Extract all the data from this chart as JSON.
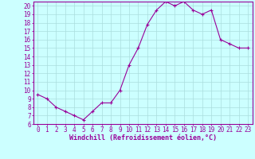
{
  "hours": [
    0,
    1,
    2,
    3,
    4,
    5,
    6,
    7,
    8,
    9,
    10,
    11,
    12,
    13,
    14,
    15,
    16,
    17,
    18,
    19,
    20,
    21,
    22,
    23
  ],
  "values": [
    9.5,
    9.0,
    8.0,
    7.5,
    7.0,
    6.5,
    7.5,
    8.5,
    8.5,
    10.0,
    13.0,
    15.0,
    17.8,
    19.5,
    20.5,
    20.0,
    20.5,
    19.5,
    19.0,
    19.5,
    16.0,
    15.5,
    15.0,
    15.0
  ],
  "line_color": "#990099",
  "marker": "+",
  "bg_color": "#ccffff",
  "grid_color": "#aadddd",
  "xlabel": "Windchill (Refroidissement éolien,°C)",
  "ylim": [
    6,
    20.5
  ],
  "xlim": [
    -0.5,
    23.5
  ],
  "yticks": [
    6,
    7,
    8,
    9,
    10,
    11,
    12,
    13,
    14,
    15,
    16,
    17,
    18,
    19,
    20
  ],
  "xticks": [
    0,
    1,
    2,
    3,
    4,
    5,
    6,
    7,
    8,
    9,
    10,
    11,
    12,
    13,
    14,
    15,
    16,
    17,
    18,
    19,
    20,
    21,
    22,
    23
  ],
  "tick_color": "#990099",
  "label_color": "#990099",
  "axis_color": "#990099",
  "font_size": 5.5,
  "xlabel_font_size": 6.0,
  "marker_size": 3,
  "line_width": 0.8
}
